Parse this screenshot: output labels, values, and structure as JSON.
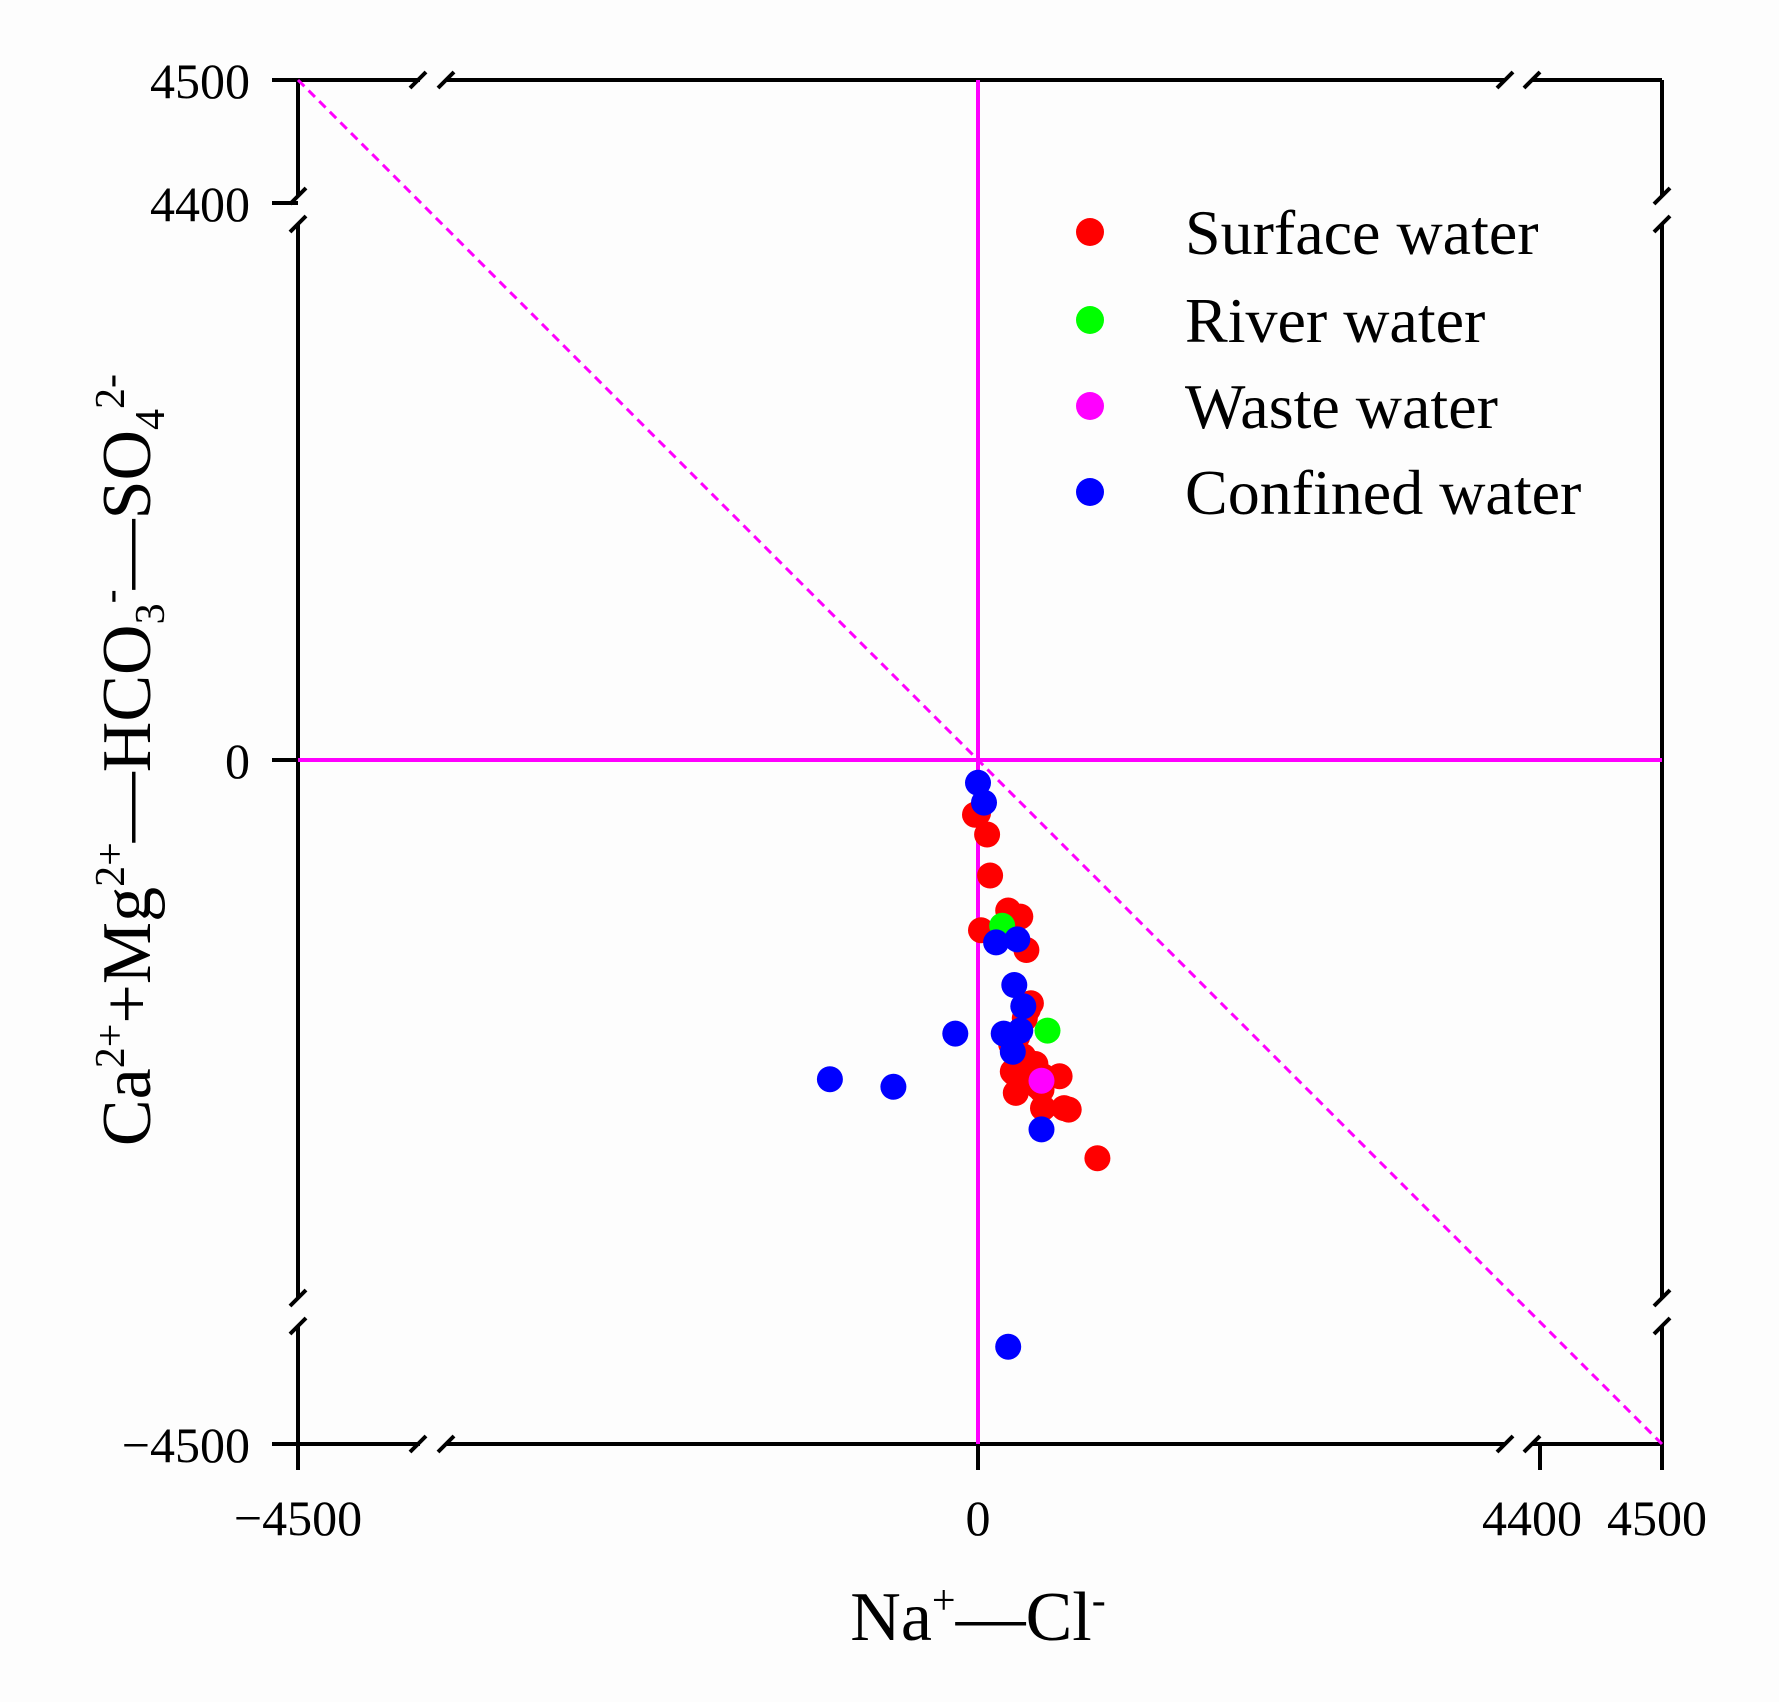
{
  "chart_data": {
    "type": "scatter",
    "title": "",
    "xlabel": "Na⁺—Cl⁻",
    "ylabel": "Ca²⁺+Mg²⁺—HCO₃⁻—SO₄²⁻",
    "xlabel_parts": {
      "a": "Na",
      "a_sup": "+",
      "b": "—Cl",
      "b_sup": "-"
    },
    "ylabel_parts": {
      "a": "Ca",
      "a_sup": "2+",
      "b": "+Mg",
      "b_sup": "2+",
      "c": "—HCO",
      "c_sub": "3",
      "c_sup": "-",
      "d": "—SO",
      "d_sub": "4",
      "d_sup": "2-"
    },
    "xlim": [
      -4500,
      4500
    ],
    "ylim": [
      -4500,
      4500
    ],
    "axis_breaks": "x axis broken near both ends; y axis broken near both ends",
    "x_tick_labels": [
      "−4500",
      "0",
      "4400",
      "4500"
    ],
    "y_tick_labels": [
      "4500",
      "4400",
      "0",
      "−4500"
    ],
    "reference_lines": [
      {
        "name": "x = 0",
        "style": "solid",
        "color": "#ff00ff"
      },
      {
        "name": "y = 0",
        "style": "solid",
        "color": "#ff00ff"
      },
      {
        "name": "y = −x",
        "style": "dashed",
        "color": "#ff00ff"
      }
    ],
    "legend_position": "top-right",
    "series": [
      {
        "name": "Surface water",
        "color": "#ff0000",
        "points": [
          [
            -20,
            -360
          ],
          [
            60,
            -490
          ],
          [
            80,
            -760
          ],
          [
            0,
            -350
          ],
          [
            200,
            -990
          ],
          [
            280,
            -1030
          ],
          [
            320,
            -1250
          ],
          [
            20,
            -1120
          ],
          [
            350,
            -1600
          ],
          [
            330,
            -1640
          ],
          [
            310,
            -1700
          ],
          [
            220,
            -1870
          ],
          [
            260,
            -1820
          ],
          [
            300,
            -1950
          ],
          [
            250,
            -2050
          ],
          [
            380,
            -2000
          ],
          [
            430,
            -2080
          ],
          [
            400,
            -2150
          ],
          [
            240,
            -2060
          ],
          [
            230,
            -2050
          ],
          [
            250,
            -2190
          ],
          [
            340,
            -2080
          ],
          [
            310,
            -2120
          ],
          [
            360,
            -2040
          ],
          [
            420,
            -2170
          ],
          [
            540,
            -2080
          ],
          [
            570,
            -2290
          ],
          [
            430,
            -2290
          ],
          [
            600,
            -2300
          ],
          [
            790,
            -2620
          ]
        ]
      },
      {
        "name": "River water",
        "color": "#00ff00",
        "points": [
          [
            160,
            -1090
          ],
          [
            460,
            -1780
          ]
        ]
      },
      {
        "name": "Waste water",
        "color": "#ff00ff",
        "points": [
          [
            420,
            -2110
          ]
        ]
      },
      {
        "name": "Confined water",
        "color": "#0000ff",
        "points": [
          [
            0,
            -150
          ],
          [
            40,
            -280
          ],
          [
            260,
            -1180
          ],
          [
            120,
            -1200
          ],
          [
            240,
            -1480
          ],
          [
            300,
            -1620
          ],
          [
            280,
            -1780
          ],
          [
            170,
            -1800
          ],
          [
            230,
            -1920
          ],
          [
            -150,
            -1800
          ],
          [
            -980,
            -2100
          ],
          [
            -560,
            -2150
          ],
          [
            420,
            -2430
          ],
          [
            200,
            -3860
          ]
        ]
      }
    ]
  }
}
